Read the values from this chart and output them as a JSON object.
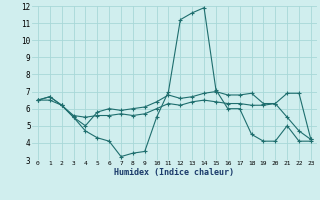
{
  "xlabel": "Humidex (Indice chaleur)",
  "x": [
    0,
    1,
    2,
    3,
    4,
    5,
    6,
    7,
    8,
    9,
    10,
    11,
    12,
    13,
    14,
    15,
    16,
    17,
    18,
    19,
    20,
    21,
    22,
    23
  ],
  "line1": [
    6.5,
    6.7,
    6.2,
    5.5,
    4.7,
    4.3,
    4.1,
    3.2,
    3.4,
    3.5,
    5.5,
    7.0,
    11.2,
    11.6,
    11.9,
    7.1,
    6.0,
    6.0,
    4.5,
    4.1,
    4.1,
    5.0,
    4.1,
    4.1
  ],
  "line2": [
    6.5,
    6.5,
    6.2,
    5.6,
    5.5,
    5.6,
    5.6,
    5.7,
    5.6,
    5.7,
    6.0,
    6.3,
    6.2,
    6.4,
    6.5,
    6.4,
    6.3,
    6.3,
    6.2,
    6.2,
    6.3,
    5.5,
    4.7,
    4.2
  ],
  "line3": [
    6.5,
    6.7,
    6.2,
    5.5,
    5.0,
    5.8,
    6.0,
    5.9,
    6.0,
    6.1,
    6.4,
    6.8,
    6.6,
    6.7,
    6.9,
    7.0,
    6.8,
    6.8,
    6.9,
    6.3,
    6.3,
    6.9,
    6.9,
    4.2
  ],
  "line_color": "#1e6e6e",
  "bg_color": "#d0eeee",
  "grid_color": "#a8d8d8",
  "ylim_min": 3,
  "ylim_max": 12,
  "xlim_min": -0.5,
  "xlim_max": 23.5
}
